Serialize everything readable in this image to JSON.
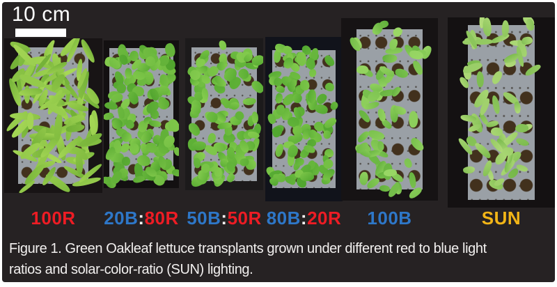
{
  "figure": {
    "scale_bar": {
      "label": "10 cm"
    },
    "caption_lines": [
      "Figure 1. Green Oakleaf lettuce transplants grown under different red to blue light",
      "ratios and solar-color-ratio (SUN) lighting."
    ],
    "colors": {
      "red": "#ed1c24",
      "blue": "#2e77c8",
      "white": "#f5f3f2",
      "yellow": "#f2b517",
      "figure_background": "#262223",
      "tray_gray": "#9aa0a6",
      "soil_brown": "#42311d"
    },
    "panels": [
      {
        "name": "100R",
        "label_parts": [
          {
            "text": "100R",
            "color": "red"
          }
        ],
        "foliage": {
          "count": 100,
          "color_a": "#6fae35",
          "color_b": "#a8d957"
        }
      },
      {
        "name": "20B:80R",
        "label_parts": [
          {
            "text": "20B",
            "color": "blue"
          },
          {
            "text": ":",
            "color": "white"
          },
          {
            "text": "80R",
            "color": "red"
          }
        ],
        "foliage": {
          "count": 130,
          "color_a": "#4ea22c",
          "color_b": "#86cc4e"
        }
      },
      {
        "name": "50B:50R",
        "label_parts": [
          {
            "text": "50B",
            "color": "blue"
          },
          {
            "text": ":",
            "color": "white"
          },
          {
            "text": "50R",
            "color": "red"
          }
        ],
        "foliage": {
          "count": 115,
          "color_a": "#54a930",
          "color_b": "#8bd052"
        }
      },
      {
        "name": "80B:20R",
        "label_parts": [
          {
            "text": "80B",
            "color": "blue"
          },
          {
            "text": ":",
            "color": "white"
          },
          {
            "text": "20R",
            "color": "red"
          }
        ],
        "foliage": {
          "count": 95,
          "color_a": "#4ea52e",
          "color_b": "#84cb4d"
        }
      },
      {
        "name": "100B",
        "label_parts": [
          {
            "text": "100B",
            "color": "blue"
          }
        ],
        "foliage": {
          "count": 62,
          "color_a": "#5fae3a",
          "color_b": "#9bd866"
        }
      },
      {
        "name": "SUN",
        "label_parts": [
          {
            "text": "SUN",
            "color": "yellow"
          }
        ],
        "foliage": {
          "count": 58,
          "color_a": "#74b748",
          "color_b": "#b5dd7d"
        }
      }
    ]
  }
}
